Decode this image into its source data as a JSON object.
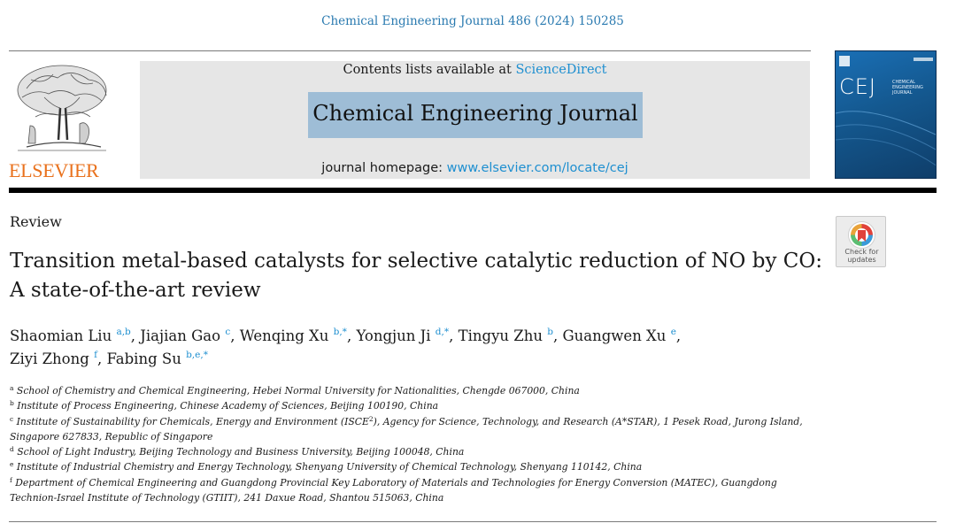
{
  "running_head": "Chemical Engineering Journal 486 (2024) 150285",
  "publisher": {
    "name": "ELSEVIER"
  },
  "banner": {
    "contents_prefix": "Contents lists available at ",
    "contents_link": "ScienceDirect",
    "journal_title": "Chemical Engineering Journal",
    "homepage_prefix": "journal homepage: ",
    "homepage_link": "www.elsevier.com/locate/cej"
  },
  "cover": {
    "abbrev": "CEJ",
    "name_lines": [
      "CHEMICAL",
      "ENGINEERING",
      "JOURNAL"
    ]
  },
  "check_updates": {
    "line1": "Check for",
    "line2": "updates"
  },
  "article": {
    "type": "Review",
    "title": "Transition metal-based catalysts for selective catalytic reduction of NO by CO: A state-of-the-art review"
  },
  "authors": [
    {
      "name": "Shaomian Liu",
      "sup": "a,b"
    },
    {
      "name": "Jiajian Gao",
      "sup": "c"
    },
    {
      "name": "Wenqing Xu",
      "sup": "b,*"
    },
    {
      "name": "Yongjun Ji",
      "sup": "d,*"
    },
    {
      "name": "Tingyu Zhu",
      "sup": "b"
    },
    {
      "name": "Guangwen Xu",
      "sup": "e"
    },
    {
      "name": "Ziyi Zhong",
      "sup": "f"
    },
    {
      "name": "Fabing Su",
      "sup": "b,e,*"
    }
  ],
  "affiliations": [
    {
      "label": "a",
      "text": "School of Chemistry and Chemical Engineering, Hebei Normal University for Nationalities, Chengde 067000, China"
    },
    {
      "label": "b",
      "text": "Institute of Process Engineering, Chinese Academy of Sciences, Beijing 100190, China"
    },
    {
      "label": "c",
      "text_before": "Institute of Sustainability for Chemicals, Energy and Environment (ISCE",
      "text_sup": "2",
      "text_after": "), Agency for Science, Technology, and Research (A*STAR), 1 Pesek Road, Jurong Island, Singapore 627833, Republic of Singapore"
    },
    {
      "label": "d",
      "text": "School of Light Industry, Beijing Technology and Business University, Beijing 100048, China"
    },
    {
      "label": "e",
      "text": "Institute of Industrial Chemistry and Energy Technology, Shenyang University of Chemical Technology, Shenyang 110142, China"
    },
    {
      "label": "f",
      "text": "Department of Chemical Engineering and Guangdong Provincial Key Laboratory of Materials and Technologies for Energy Conversion (MATEC), Guangdong Technion-Israel Institute of Technology (GTIIT), 241 Daxue Road, Shantou 515063, China"
    }
  ],
  "colors": {
    "link": "#1e8fd0",
    "publisher": "#e9711c",
    "title_highlight": "#9ebdd6",
    "banner_bg": "#e6e6e6"
  }
}
